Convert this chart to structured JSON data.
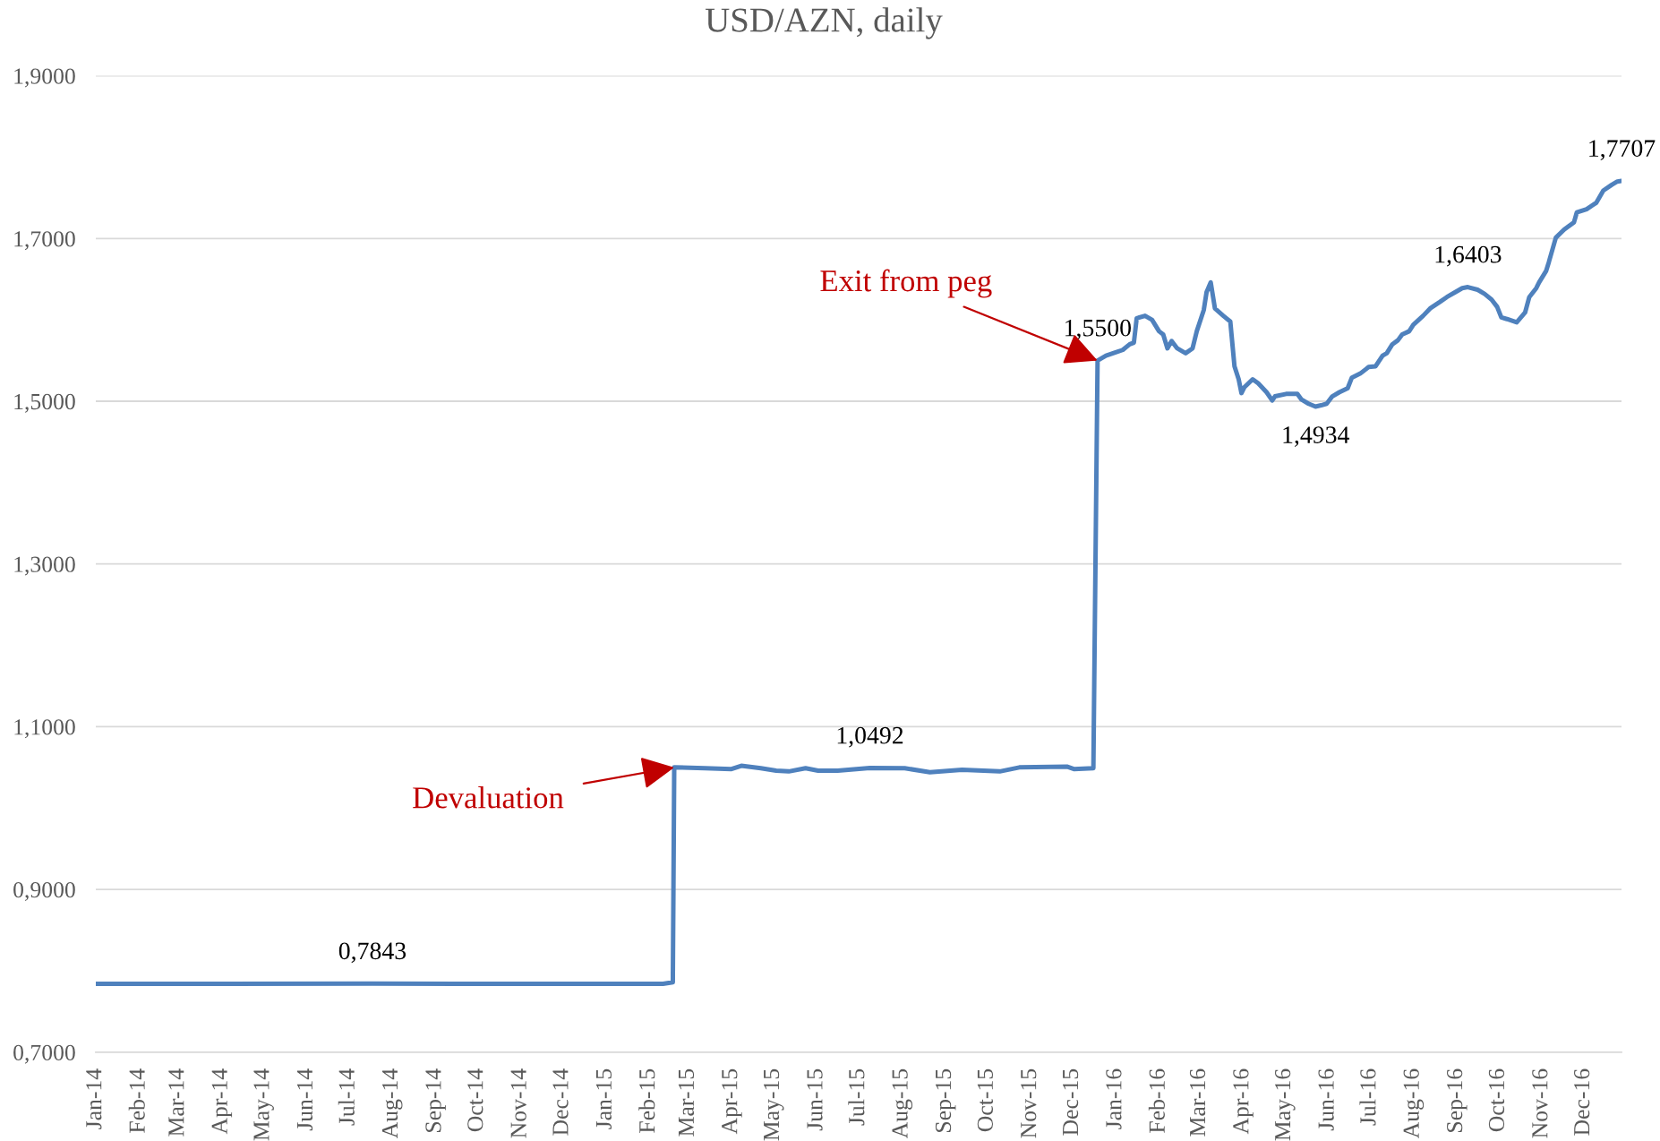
{
  "chart_data": {
    "type": "line",
    "title": "USD/AZN, daily",
    "x": [
      "2014-01-03",
      "2014-04-01",
      "2014-07-20",
      "2014-10-15",
      "2015-01-15",
      "2015-02-13",
      "2015-02-20",
      "2015-02-21",
      "2015-03-15",
      "2015-04-03",
      "2015-04-10",
      "2015-04-24",
      "2015-05-05",
      "2015-05-14",
      "2015-05-26",
      "2015-06-04",
      "2015-06-18",
      "2015-07-11",
      "2015-08-05",
      "2015-08-23",
      "2015-09-15",
      "2015-10-12",
      "2015-10-26",
      "2015-11-29",
      "2015-12-04",
      "2015-12-18",
      "2015-12-21",
      "2015-12-27",
      "2016-01-03",
      "2016-01-08",
      "2016-01-13",
      "2016-01-16",
      "2016-01-18",
      "2016-01-24",
      "2016-01-29",
      "2016-02-03",
      "2016-02-06",
      "2016-02-09",
      "2016-02-12",
      "2016-02-16",
      "2016-02-22",
      "2016-02-27",
      "2016-03-01",
      "2016-03-06",
      "2016-03-08",
      "2016-03-11",
      "2016-03-14",
      "2016-03-20",
      "2016-03-25",
      "2016-03-28",
      "2016-03-31",
      "2016-04-02",
      "2016-04-04",
      "2016-04-10",
      "2016-04-14",
      "2016-04-20",
      "2016-04-24",
      "2016-04-26",
      "2016-05-04",
      "2016-05-12",
      "2016-05-15",
      "2016-05-20",
      "2016-05-25",
      "2016-05-29",
      "2016-06-02",
      "2016-06-06",
      "2016-06-11",
      "2016-06-17",
      "2016-06-20",
      "2016-06-26",
      "2016-07-02",
      "2016-07-07",
      "2016-07-12",
      "2016-07-15",
      "2016-07-19",
      "2016-07-23",
      "2016-07-26",
      "2016-07-31",
      "2016-08-03",
      "2016-08-10",
      "2016-08-15",
      "2016-08-22",
      "2016-08-27",
      "2016-09-02",
      "2016-09-07",
      "2016-09-11",
      "2016-09-18",
      "2016-09-23",
      "2016-09-28",
      "2016-10-02",
      "2016-10-05",
      "2016-10-09",
      "2016-10-16",
      "2016-10-22",
      "2016-10-25",
      "2016-10-30",
      "2016-11-01",
      "2016-11-06",
      "2016-11-08",
      "2016-11-13",
      "2016-11-19",
      "2016-11-26",
      "2016-11-28",
      "2016-12-05",
      "2016-12-12",
      "2016-12-17",
      "2016-12-23",
      "2016-12-27",
      "2016-12-30"
    ],
    "series": [
      {
        "color": "#4f81bd",
        "values": [
          0.784,
          0.784,
          0.7843,
          0.784,
          0.784,
          0.784,
          0.786,
          1.05,
          1.049,
          1.048,
          1.052,
          1.049,
          1.046,
          1.045,
          1.049,
          1.046,
          1.046,
          1.0492,
          1.049,
          1.044,
          1.047,
          1.045,
          1.05,
          1.051,
          1.048,
          1.049,
          1.55,
          1.556,
          1.56,
          1.563,
          1.57,
          1.572,
          1.602,
          1.605,
          1.6,
          1.586,
          1.582,
          1.565,
          1.574,
          1.565,
          1.559,
          1.565,
          1.586,
          1.612,
          1.634,
          1.646,
          1.614,
          1.605,
          1.598,
          1.543,
          1.527,
          1.51,
          1.517,
          1.527,
          1.522,
          1.511,
          1.501,
          1.506,
          1.509,
          1.509,
          1.502,
          1.497,
          1.4934,
          1.495,
          1.497,
          1.506,
          1.511,
          1.516,
          1.529,
          1.534,
          1.542,
          1.543,
          1.556,
          1.559,
          1.57,
          1.575,
          1.582,
          1.586,
          1.594,
          1.605,
          1.614,
          1.622,
          1.628,
          1.634,
          1.639,
          1.6403,
          1.637,
          1.632,
          1.625,
          1.616,
          1.603,
          1.601,
          1.597,
          1.609,
          1.628,
          1.639,
          1.646,
          1.66,
          1.671,
          1.701,
          1.711,
          1.72,
          1.732,
          1.736,
          1.744,
          1.759,
          1.766,
          1.77,
          1.7707
        ],
        "value_labels": [
          null,
          null,
          "0,7843",
          null,
          null,
          null,
          null,
          null,
          null,
          null,
          null,
          null,
          null,
          null,
          null,
          null,
          null,
          "1,0492",
          null,
          null,
          null,
          null,
          null,
          null,
          null,
          null,
          "1,5500",
          null,
          null,
          null,
          null,
          null,
          null,
          null,
          null,
          null,
          null,
          null,
          null,
          null,
          null,
          null,
          null,
          null,
          null,
          null,
          null,
          null,
          null,
          null,
          null,
          null,
          null,
          null,
          null,
          null,
          null,
          null,
          null,
          null,
          null,
          null,
          "1,4934",
          null,
          null,
          null,
          null,
          null,
          null,
          null,
          null,
          null,
          null,
          null,
          null,
          null,
          null,
          null,
          null,
          null,
          null,
          null,
          null,
          null,
          null,
          "1,6403",
          null,
          null,
          null,
          null,
          null,
          null,
          null,
          null,
          null,
          null,
          null,
          null,
          null,
          null,
          null,
          null,
          null,
          null,
          null,
          null,
          null,
          null,
          "1,7707"
        ]
      }
    ],
    "xlim": [
      "2014-01-03",
      "2016-12-30"
    ],
    "xticks": [
      {
        "value": "2014-01-03",
        "label": "Jan-14"
      },
      {
        "value": "2014-02-03",
        "label": "Feb-14"
      },
      {
        "value": "2014-03-03",
        "label": "Mar-14"
      },
      {
        "value": "2014-04-03",
        "label": "Apr-14"
      },
      {
        "value": "2014-05-03",
        "label": "May-14"
      },
      {
        "value": "2014-06-03",
        "label": "Jun-14"
      },
      {
        "value": "2014-07-03",
        "label": "Jul-14"
      },
      {
        "value": "2014-08-03",
        "label": "Aug-14"
      },
      {
        "value": "2014-09-03",
        "label": "Sep-14"
      },
      {
        "value": "2014-10-03",
        "label": "Oct-14"
      },
      {
        "value": "2014-11-03",
        "label": "Nov-14"
      },
      {
        "value": "2014-12-03",
        "label": "Dec-14"
      },
      {
        "value": "2015-01-03",
        "label": "Jan-15"
      },
      {
        "value": "2015-02-03",
        "label": "Feb-15"
      },
      {
        "value": "2015-03-03",
        "label": "Mar-15"
      },
      {
        "value": "2015-04-03",
        "label": "Apr-15"
      },
      {
        "value": "2015-05-03",
        "label": "May-15"
      },
      {
        "value": "2015-06-03",
        "label": "Jun-15"
      },
      {
        "value": "2015-07-03",
        "label": "Jul-15"
      },
      {
        "value": "2015-08-03",
        "label": "Aug-15"
      },
      {
        "value": "2015-09-03",
        "label": "Sep-15"
      },
      {
        "value": "2015-10-03",
        "label": "Oct-15"
      },
      {
        "value": "2015-11-03",
        "label": "Nov-15"
      },
      {
        "value": "2015-12-03",
        "label": "Dec-15"
      },
      {
        "value": "2016-01-03",
        "label": "Jan-16"
      },
      {
        "value": "2016-02-03",
        "label": "Feb-16"
      },
      {
        "value": "2016-03-03",
        "label": "Mar-16"
      },
      {
        "value": "2016-04-03",
        "label": "Apr-16"
      },
      {
        "value": "2016-05-03",
        "label": "May-16"
      },
      {
        "value": "2016-06-03",
        "label": "Jun-16"
      },
      {
        "value": "2016-07-03",
        "label": "Jul-16"
      },
      {
        "value": "2016-08-03",
        "label": "Aug-16"
      },
      {
        "value": "2016-09-03",
        "label": "Sep-16"
      },
      {
        "value": "2016-10-03",
        "label": "Oct-16"
      },
      {
        "value": "2016-11-03",
        "label": "Nov-16"
      },
      {
        "value": "2016-12-03",
        "label": "Dec-16"
      }
    ],
    "ylim": [
      0.7,
      1.9
    ],
    "yticks": [
      {
        "value": 0.7,
        "label": "0,7000"
      },
      {
        "value": 0.9,
        "label": "0,9000"
      },
      {
        "value": 1.1,
        "label": "1,1000"
      },
      {
        "value": 1.3,
        "label": "1,3000"
      },
      {
        "value": 1.5,
        "label": "1,5000"
      },
      {
        "value": 1.7,
        "label": "1,7000"
      },
      {
        "value": 1.9,
        "label": "1,9000"
      }
    ],
    "grid": "y",
    "annotations": [
      {
        "text": "Devaluation",
        "x": "2015-02-21",
        "y": 1.05
      },
      {
        "text": "Exit from peg",
        "x": "2015-12-21",
        "y": 1.55
      }
    ]
  }
}
